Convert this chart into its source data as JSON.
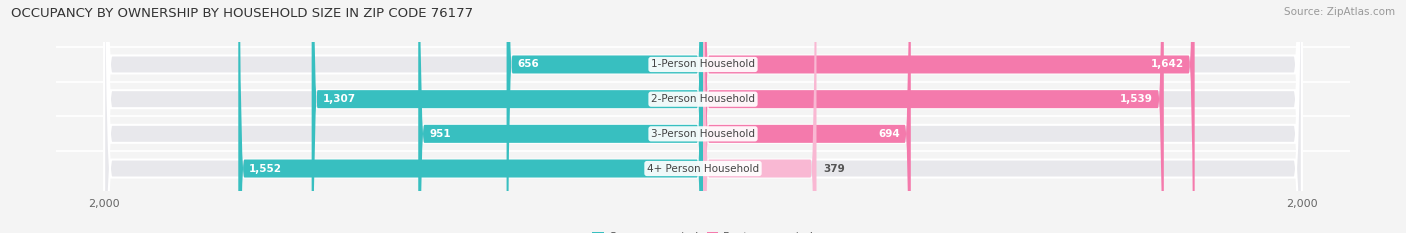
{
  "title": "OCCUPANCY BY OWNERSHIP BY HOUSEHOLD SIZE IN ZIP CODE 76177",
  "source": "Source: ZipAtlas.com",
  "categories": [
    "1-Person Household",
    "2-Person Household",
    "3-Person Household",
    "4+ Person Household"
  ],
  "owner_values": [
    656,
    1307,
    951,
    1552
  ],
  "renter_values": [
    1642,
    1539,
    694,
    379
  ],
  "max_val": 2000,
  "owner_color": "#38bfc0",
  "renter_color": "#f47aac",
  "renter_color_light": "#f9b8d3",
  "bg_color": "#f4f4f4",
  "bar_bg_color": "#e8e8ec",
  "title_fontsize": 9.5,
  "source_fontsize": 7.5,
  "label_fontsize": 7.5,
  "value_fontsize": 7.5,
  "axis_label_fontsize": 8,
  "legend_fontsize": 8
}
